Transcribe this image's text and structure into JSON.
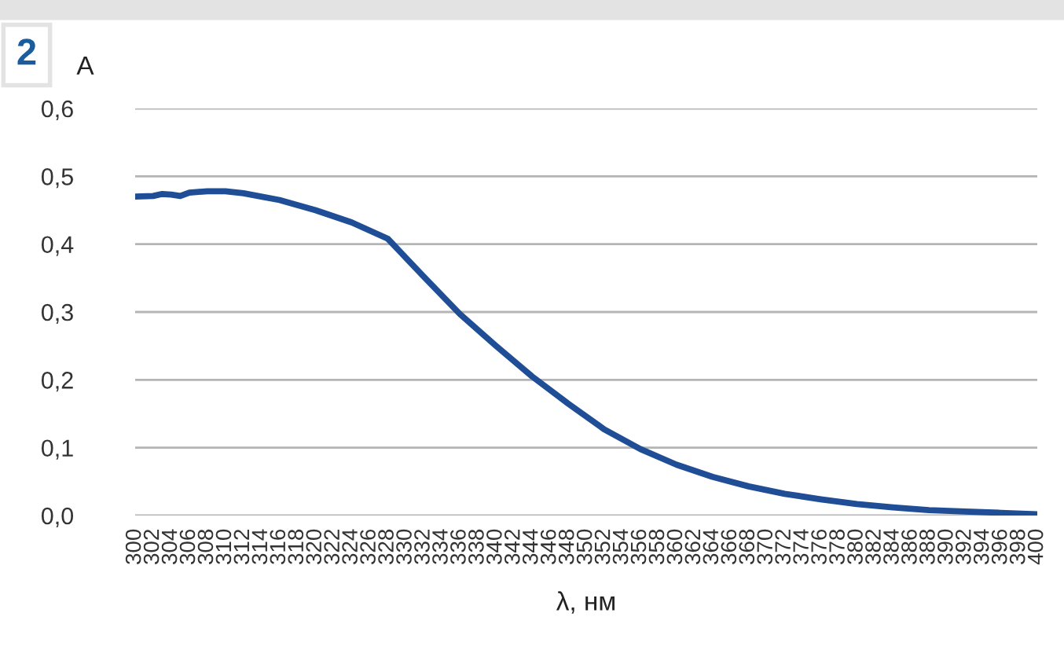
{
  "chart_data": {
    "type": "line",
    "xlabel": "λ, нм",
    "ylabel": "A",
    "annotations": [
      "2"
    ],
    "series": [
      {
        "color": "#1f4e96",
        "x": [
          300,
          302,
          303,
          304,
          305,
          306,
          308,
          310,
          312,
          316,
          320,
          324,
          328,
          332,
          336,
          340,
          344,
          348,
          352,
          356,
          360,
          364,
          368,
          372,
          376,
          380,
          384,
          388,
          392,
          396,
          400
        ],
        "values": [
          0.47,
          0.471,
          0.474,
          0.473,
          0.471,
          0.476,
          0.478,
          0.478,
          0.475,
          0.465,
          0.45,
          0.432,
          0.408,
          0.352,
          0.297,
          0.25,
          0.205,
          0.165,
          0.127,
          0.098,
          0.075,
          0.057,
          0.043,
          0.032,
          0.024,
          0.017,
          0.012,
          0.008,
          0.006,
          0.004,
          0.002
        ]
      }
    ],
    "xlim": [
      300,
      400
    ],
    "xticks": [
      300,
      302,
      304,
      306,
      308,
      310,
      312,
      314,
      316,
      318,
      320,
      322,
      324,
      326,
      328,
      330,
      332,
      334,
      336,
      338,
      340,
      342,
      344,
      346,
      348,
      350,
      352,
      354,
      356,
      358,
      360,
      362,
      364,
      366,
      368,
      370,
      372,
      374,
      376,
      378,
      380,
      382,
      384,
      386,
      388,
      390,
      392,
      394,
      396,
      398,
      400
    ],
    "ylim": [
      0,
      0.6
    ],
    "yticks": [
      {
        "value": 0,
        "label": "0,0"
      },
      {
        "value": 0.1,
        "label": "0,1"
      },
      {
        "value": 0.2,
        "label": "0,2"
      },
      {
        "value": 0.3,
        "label": "0,3"
      },
      {
        "value": 0.4,
        "label": "0,4"
      },
      {
        "value": 0.5,
        "label": "0,5"
      },
      {
        "value": 0.6,
        "label": "0,6"
      }
    ],
    "grid": "y",
    "legend": false,
    "marker": "none",
    "line_style": "solid"
  }
}
